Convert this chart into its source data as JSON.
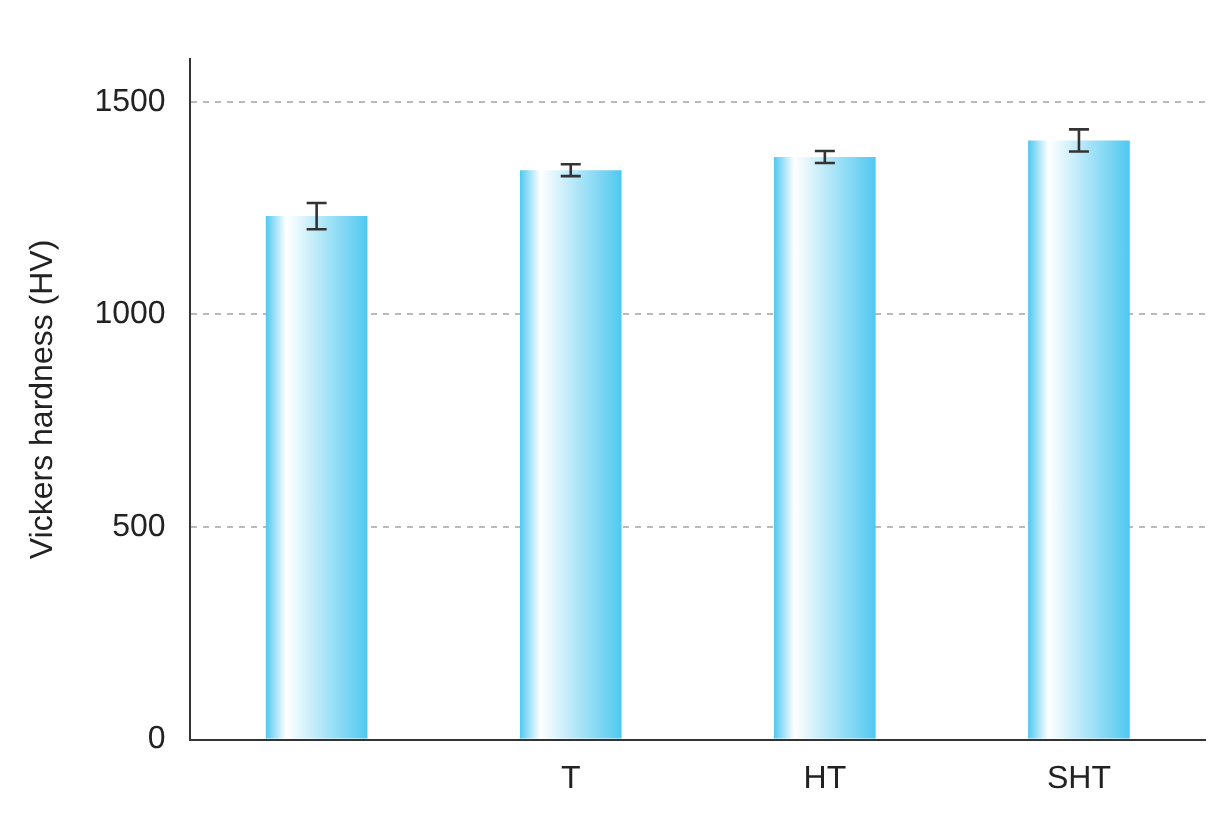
{
  "chart_data": {
    "type": "bar",
    "ylabel": "Vickers hardness (HV)",
    "categories": [
      null,
      "T",
      "HT",
      "SHT"
    ],
    "values": [
      1231,
      1339,
      1370,
      1409
    ],
    "errors": [
      31,
      14,
      14,
      26
    ],
    "color": "#4fc8f0",
    "ylim": [
      0,
      1600
    ],
    "yticks": [
      0,
      500,
      1000,
      1500
    ],
    "grid": "y",
    "legend": false
  }
}
